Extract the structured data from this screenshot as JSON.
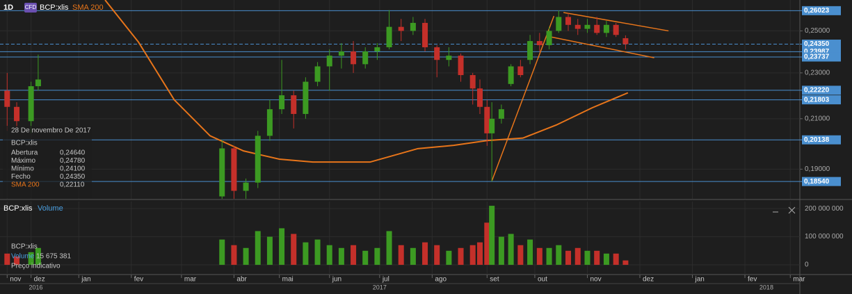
{
  "toolbar": {
    "interval": "1D",
    "badge": "CFD",
    "symbol": "BCP:xlis",
    "indicator": "SMA 200"
  },
  "crosshair_info": {
    "date": "28 De novembro De 2017",
    "symbol": "BCP:xlis",
    "rows": [
      {
        "label": "Abertura",
        "value": "0,24640"
      },
      {
        "label": "Máximo",
        "value": "0,24780"
      },
      {
        "label": "Mínimo",
        "value": "0,24100"
      },
      {
        "label": "Fecho",
        "value": "0,24350"
      },
      {
        "label": "SMA 200",
        "value": "0,22110"
      }
    ]
  },
  "chart_data": [
    {
      "type": "candlestick",
      "title": "BCP:xlis",
      "log_scale": true,
      "grid": true,
      "up_color": "#3c9a22",
      "down_color": "#c4302a",
      "x": [
        0,
        4,
        10,
        13,
        90,
        95,
        100,
        105,
        110,
        115,
        120,
        125,
        130,
        135,
        140,
        145,
        150,
        155,
        160,
        165,
        170,
        175,
        180,
        185,
        190,
        195,
        198,
        201,
        203,
        207,
        211,
        215,
        219,
        223,
        227,
        231,
        235,
        239,
        243,
        247,
        251,
        255,
        259
      ],
      "open": [
        0.222,
        0.215,
        0.209,
        0.224,
        0.18,
        0.198,
        0.182,
        0.185,
        0.203,
        0.214,
        0.22,
        0.212,
        0.226,
        0.233,
        0.238,
        0.24,
        0.234,
        0.24,
        0.242,
        0.252,
        0.25,
        0.254,
        0.242,
        0.236,
        0.238,
        0.229,
        0.223,
        0.215,
        0.204,
        0.21,
        0.225,
        0.233,
        0.236,
        0.245,
        0.243,
        0.25,
        0.257,
        0.253,
        0.251,
        0.253,
        0.249,
        0.253,
        0.2464
      ],
      "high": [
        0.23,
        0.217,
        0.226,
        0.2385,
        0.2014,
        0.199,
        0.1865,
        0.205,
        0.218,
        0.236,
        0.222,
        0.228,
        0.235,
        0.241,
        0.244,
        0.245,
        0.242,
        0.244,
        0.2605,
        0.256,
        0.257,
        0.256,
        0.243,
        0.242,
        0.239,
        0.23,
        0.227,
        0.218,
        0.217,
        0.216,
        0.234,
        0.236,
        0.248,
        0.249,
        0.252,
        0.2603,
        0.259,
        0.256,
        0.256,
        0.257,
        0.255,
        0.254,
        0.2478
      ],
      "low": [
        0.205,
        0.206,
        0.204,
        0.222,
        0.175,
        0.178,
        0.176,
        0.183,
        0.201,
        0.212,
        0.206,
        0.21,
        0.224,
        0.222,
        0.232,
        0.23,
        0.232,
        0.236,
        0.241,
        0.245,
        0.248,
        0.24,
        0.228,
        0.233,
        0.226,
        0.216,
        0.212,
        0.199,
        0.1854,
        0.208,
        0.224,
        0.228,
        0.234,
        0.24,
        0.241,
        0.249,
        0.25,
        0.248,
        0.249,
        0.248,
        0.247,
        0.247,
        0.241
      ],
      "close": [
        0.215,
        0.209,
        0.224,
        0.227,
        0.198,
        0.182,
        0.185,
        0.203,
        0.214,
        0.22,
        0.212,
        0.226,
        0.233,
        0.238,
        0.24,
        0.234,
        0.24,
        0.242,
        0.252,
        0.25,
        0.254,
        0.242,
        0.236,
        0.238,
        0.229,
        0.223,
        0.215,
        0.204,
        0.21,
        0.214,
        0.233,
        0.229,
        0.245,
        0.243,
        0.25,
        0.257,
        0.253,
        0.251,
        0.253,
        0.249,
        0.253,
        0.248,
        0.2435
      ],
      "sma": {
        "name": "SMA 200",
        "color": "#e8751a",
        "x": [
          41,
          55,
          70,
          85,
          99,
          114,
          128,
          152,
          172,
          187,
          201,
          216,
          230,
          245,
          260
        ],
        "values": [
          0.2658,
          0.2445,
          0.218,
          0.203,
          0.197,
          0.1938,
          0.1927,
          0.1927,
          0.1979,
          0.1992,
          0.2011,
          0.2021,
          0.2074,
          0.2146,
          0.2211
        ]
      },
      "trendlines": [
        {
          "color": "#e8751a",
          "x": [
            203,
            229
          ],
          "y": [
            0.1856,
            0.2575
          ]
        },
        {
          "color": "#e8751a",
          "x": [
            233,
            277
          ],
          "y": [
            0.2593,
            0.25
          ]
        },
        {
          "color": "#e8751a",
          "x": [
            227,
            271
          ],
          "y": [
            0.2472,
            0.237
          ]
        }
      ],
      "level_color": "#4a8fcf",
      "levels": [
        {
          "value": 0.26023,
          "label": "0,26023"
        },
        {
          "value": 0.2435,
          "label": "0,24350",
          "dashed": true
        },
        {
          "value": 0.23987,
          "label": "0,23987"
        },
        {
          "value": 0.23737,
          "label": "0,23737"
        },
        {
          "value": 0.2222,
          "label": "0,22220"
        },
        {
          "value": 0.21803,
          "label": "0,21803"
        },
        {
          "value": 0.20138,
          "label": "0,20138"
        },
        {
          "value": 0.1854,
          "label": "0,18540"
        }
      ],
      "ylim": [
        0.1794,
        0.2658
      ],
      "yticks": [
        {
          "value": 0.19,
          "label": "0,19000"
        },
        {
          "value": 0.21,
          "label": "0,21000"
        },
        {
          "value": 0.23,
          "label": "0,23000"
        },
        {
          "value": 0.25,
          "label": "0,25000"
        }
      ],
      "xlim": [
        -3,
        332
      ],
      "xticks": [
        {
          "value": 0,
          "label": "nov"
        },
        {
          "value": 10,
          "label": "dez"
        },
        {
          "value": 30,
          "label": "jan"
        },
        {
          "value": 52,
          "label": "fev"
        },
        {
          "value": 73,
          "label": "mar"
        },
        {
          "value": 95,
          "label": "abr"
        },
        {
          "value": 114,
          "label": "mai"
        },
        {
          "value": 135,
          "label": "jun"
        },
        {
          "value": 156,
          "label": "jul"
        },
        {
          "value": 178,
          "label": "ago"
        },
        {
          "value": 201,
          "label": "set"
        },
        {
          "value": 221,
          "label": "out"
        },
        {
          "value": 243,
          "label": "nov"
        },
        {
          "value": 265,
          "label": "dez"
        },
        {
          "value": 287,
          "label": "jan"
        },
        {
          "value": 309,
          "label": "fev"
        },
        {
          "value": 328,
          "label": "mar"
        }
      ],
      "year_ticks": [
        {
          "value": 12,
          "label": "2016"
        },
        {
          "value": 156,
          "label": "2017"
        },
        {
          "value": 318,
          "label": "2018"
        }
      ]
    },
    {
      "type": "bar",
      "title": "BCP:xlis",
      "up_color": "#3c9a22",
      "down_color": "#c4302a",
      "series": [
        {
          "name": "Volume",
          "color": "#4a9fe0",
          "x": [
            0,
            4,
            10,
            13,
            90,
            95,
            100,
            105,
            110,
            115,
            120,
            125,
            130,
            135,
            140,
            145,
            150,
            155,
            160,
            165,
            170,
            175,
            180,
            185,
            190,
            195,
            198,
            201,
            203,
            207,
            211,
            215,
            219,
            223,
            227,
            231,
            235,
            239,
            243,
            247,
            251,
            255,
            259
          ],
          "values": [
            40000000,
            30000000,
            45000000,
            60000000,
            90000000,
            70000000,
            60000000,
            120000000,
            100000000,
            130000000,
            110000000,
            80000000,
            90000000,
            70000000,
            60000000,
            70000000,
            50000000,
            60000000,
            120000000,
            70000000,
            60000000,
            80000000,
            70000000,
            50000000,
            60000000,
            70000000,
            80000000,
            150000000,
            210000000,
            100000000,
            110000000,
            70000000,
            90000000,
            60000000,
            60000000,
            70000000,
            50000000,
            60000000,
            50000000,
            50000000,
            40000000,
            40000000,
            15675381
          ]
        }
      ],
      "ylim": [
        -34500000,
        225000000
      ],
      "yticks": [
        0,
        {
          "value": 100000000,
          "label": "100 000 000"
        },
        {
          "value": 200000000,
          "label": "200 000 000"
        }
      ],
      "legend": {
        "symbol": "BCP:xlis",
        "value_label": "15 675 381",
        "note": "Preço indicativo"
      }
    }
  ]
}
